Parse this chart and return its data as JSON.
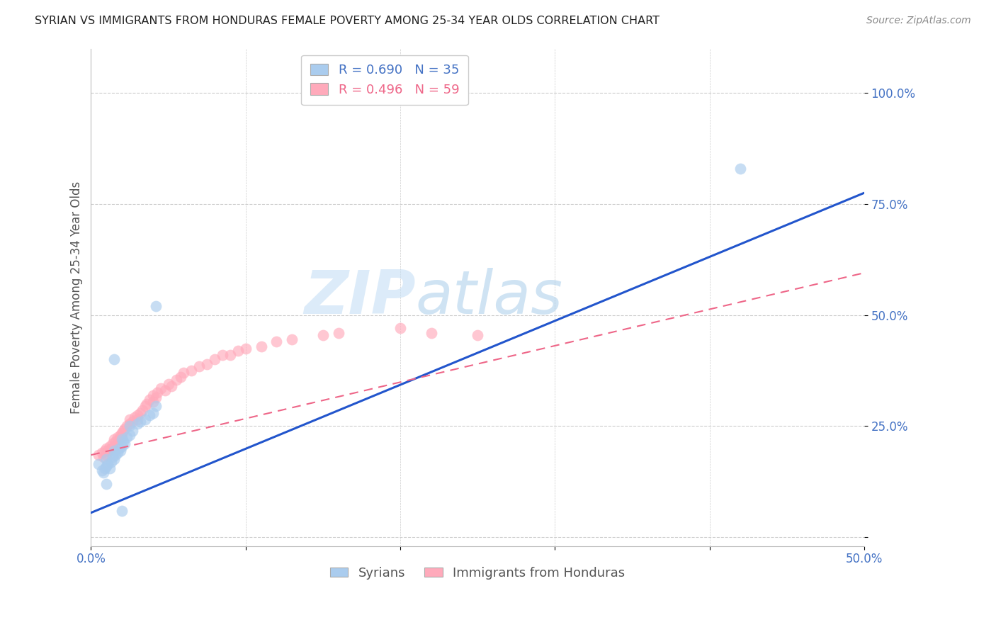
{
  "title": "SYRIAN VS IMMIGRANTS FROM HONDURAS FEMALE POVERTY AMONG 25-34 YEAR OLDS CORRELATION CHART",
  "source": "Source: ZipAtlas.com",
  "ylabel": "Female Poverty Among 25-34 Year Olds",
  "xlim": [
    0.0,
    0.5
  ],
  "ylim": [
    -0.02,
    1.1
  ],
  "yticks": [
    0.0,
    0.25,
    0.5,
    0.75,
    1.0
  ],
  "ytick_labels": [
    "",
    "25.0%",
    "50.0%",
    "75.0%",
    "100.0%"
  ],
  "xticks": [
    0.0,
    0.1,
    0.2,
    0.3,
    0.4,
    0.5
  ],
  "xtick_labels": [
    "0.0%",
    "",
    "",
    "",
    "",
    "50.0%"
  ],
  "axis_color": "#4472c4",
  "legend_label_blue": "R = 0.690   N = 35",
  "legend_label_pink": "R = 0.496   N = 59",
  "legend_label_syrians": "Syrians",
  "legend_label_honduras": "Immigrants from Honduras",
  "color_blue": "#aaccee",
  "color_pink": "#ffaabb",
  "color_blue_line": "#2255cc",
  "color_pink_line": "#ee6688",
  "watermark_zip": "ZIP",
  "watermark_atlas": "atlas",
  "blue_line_x": [
    0.0,
    0.5
  ],
  "blue_line_y": [
    0.055,
    0.775
  ],
  "pink_line_x": [
    0.0,
    0.5
  ],
  "pink_line_y": [
    0.185,
    0.595
  ],
  "syrians_x": [
    0.005,
    0.007,
    0.008,
    0.009,
    0.01,
    0.01,
    0.011,
    0.012,
    0.013,
    0.014,
    0.015,
    0.015,
    0.016,
    0.017,
    0.018,
    0.019,
    0.02,
    0.02,
    0.021,
    0.022,
    0.023,
    0.025,
    0.025,
    0.027,
    0.03,
    0.032,
    0.035,
    0.038,
    0.04,
    0.042,
    0.01,
    0.015,
    0.02,
    0.42,
    0.042
  ],
  "syrians_y": [
    0.165,
    0.15,
    0.145,
    0.155,
    0.16,
    0.175,
    0.165,
    0.155,
    0.17,
    0.18,
    0.175,
    0.195,
    0.185,
    0.19,
    0.2,
    0.195,
    0.205,
    0.22,
    0.215,
    0.21,
    0.225,
    0.23,
    0.25,
    0.24,
    0.255,
    0.26,
    0.265,
    0.275,
    0.28,
    0.295,
    0.12,
    0.4,
    0.06,
    0.83,
    0.52
  ],
  "honduras_x": [
    0.005,
    0.007,
    0.008,
    0.009,
    0.01,
    0.01,
    0.011,
    0.012,
    0.013,
    0.014,
    0.015,
    0.015,
    0.016,
    0.017,
    0.018,
    0.019,
    0.02,
    0.02,
    0.021,
    0.022,
    0.023,
    0.025,
    0.025,
    0.027,
    0.028,
    0.03,
    0.03,
    0.032,
    0.033,
    0.035,
    0.036,
    0.038,
    0.04,
    0.04,
    0.042,
    0.043,
    0.045,
    0.048,
    0.05,
    0.052,
    0.055,
    0.058,
    0.06,
    0.065,
    0.07,
    0.075,
    0.08,
    0.085,
    0.09,
    0.095,
    0.1,
    0.11,
    0.12,
    0.13,
    0.15,
    0.16,
    0.2,
    0.22,
    0.25
  ],
  "honduras_y": [
    0.185,
    0.19,
    0.18,
    0.195,
    0.185,
    0.2,
    0.195,
    0.205,
    0.2,
    0.21,
    0.205,
    0.22,
    0.215,
    0.225,
    0.22,
    0.23,
    0.225,
    0.235,
    0.24,
    0.245,
    0.25,
    0.255,
    0.265,
    0.26,
    0.27,
    0.265,
    0.275,
    0.28,
    0.285,
    0.295,
    0.3,
    0.31,
    0.305,
    0.32,
    0.315,
    0.325,
    0.335,
    0.33,
    0.345,
    0.34,
    0.355,
    0.36,
    0.37,
    0.375,
    0.385,
    0.39,
    0.4,
    0.41,
    0.41,
    0.42,
    0.425,
    0.43,
    0.44,
    0.445,
    0.455,
    0.46,
    0.47,
    0.46,
    0.455
  ]
}
